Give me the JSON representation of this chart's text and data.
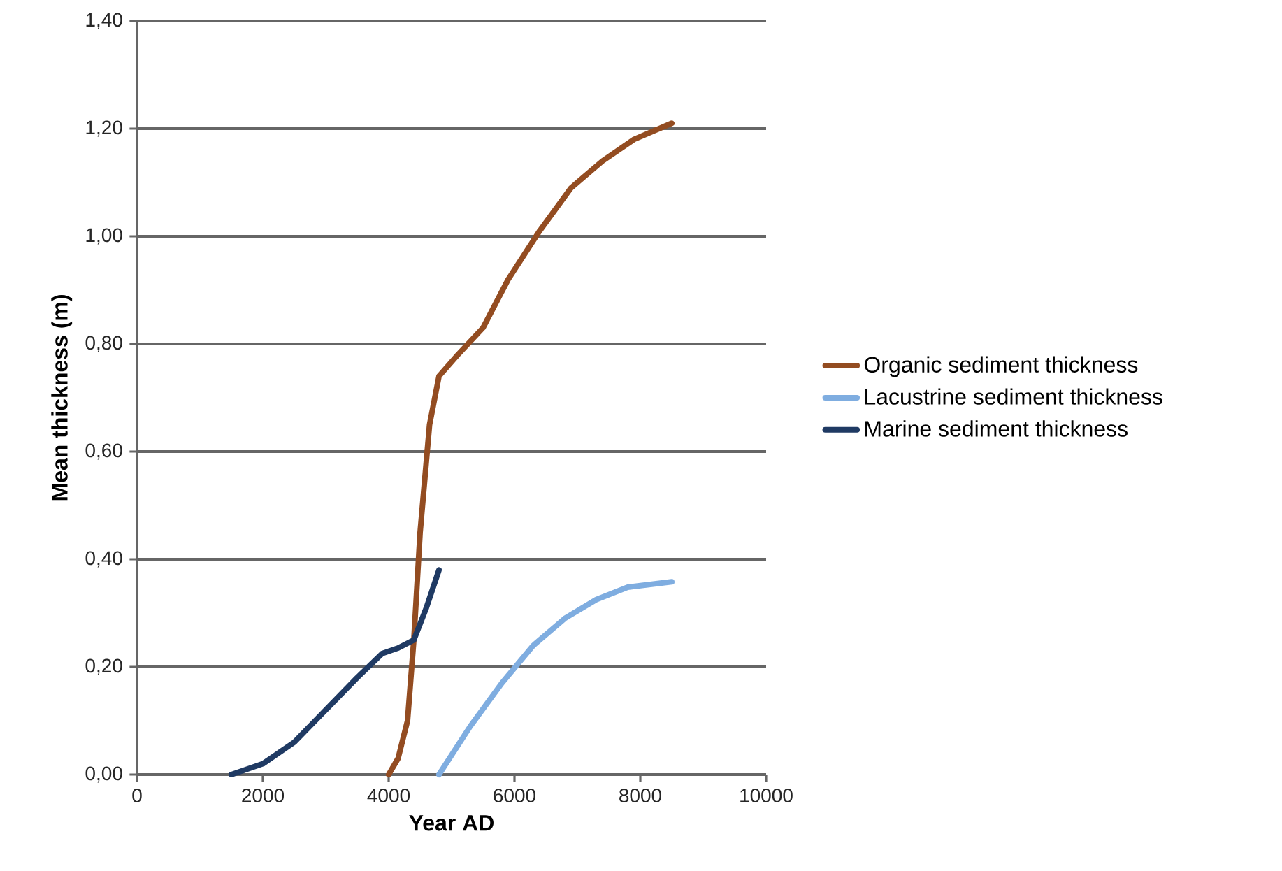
{
  "chart_data": {
    "type": "line",
    "xlabel": "Year AD",
    "ylabel": "Mean thickness (m)",
    "xlim": [
      0,
      10000
    ],
    "xticks": [
      0,
      2000,
      4000,
      6000,
      8000,
      10000
    ],
    "ylim": [
      0,
      1.4
    ],
    "yticks": [
      {
        "value": 0,
        "label": "0,00"
      },
      {
        "value": 0.2,
        "label": "0,20"
      },
      {
        "value": 0.4,
        "label": "0,40"
      },
      {
        "value": 0.6,
        "label": "0,60"
      },
      {
        "value": 0.8,
        "label": "0,80"
      },
      {
        "value": 1.0,
        "label": "1,00"
      },
      {
        "value": 1.2,
        "label": "1,20"
      },
      {
        "value": 1.4,
        "label": "1,40"
      }
    ],
    "grid": "y",
    "legend": "right",
    "marker": "none",
    "series": [
      {
        "name": "Organic sediment thickness",
        "color": "#934c21",
        "x": [
          4000,
          4150,
          4300,
          4400,
          4500,
          4650,
          4800,
          5100,
          5500,
          5900,
          6400,
          6900,
          7400,
          7900,
          8500
        ],
        "values": [
          0,
          0.03,
          0.1,
          0.25,
          0.45,
          0.65,
          0.74,
          0.78,
          0.83,
          0.92,
          1.01,
          1.09,
          1.14,
          1.18,
          1.21
        ]
      },
      {
        "name": "Lacustrine sediment thickness",
        "color": "#7fade0",
        "x": [
          4800,
          5300,
          5800,
          6300,
          6800,
          7300,
          7800,
          8500
        ],
        "values": [
          0,
          0.09,
          0.17,
          0.24,
          0.29,
          0.325,
          0.348,
          0.358
        ]
      },
      {
        "name": "Marine sediment thickness",
        "color": "#1f3a63",
        "x": [
          1500,
          2000,
          2500,
          3000,
          3500,
          3900,
          4150,
          4400,
          4600,
          4800
        ],
        "values": [
          0,
          0.02,
          0.06,
          0.12,
          0.18,
          0.225,
          0.235,
          0.25,
          0.31,
          0.38
        ]
      }
    ]
  }
}
